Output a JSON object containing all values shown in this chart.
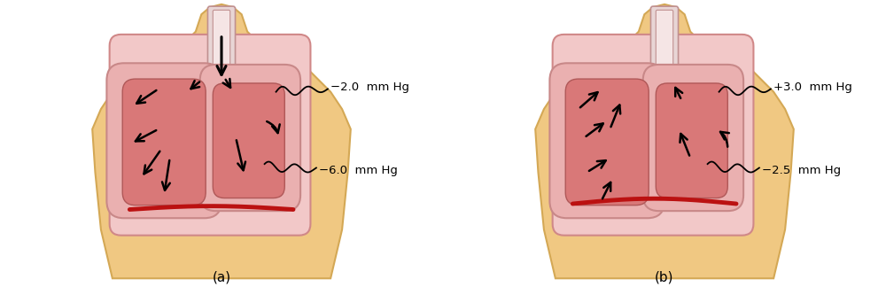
{
  "skin_color": "#F0C882",
  "skin_edge_color": "#D4A855",
  "pleura_bg_color": "#F2C8C8",
  "pleura_edge_color": "#D08888",
  "lung_outer_color": "#EAB0B0",
  "lung_outer_edge": "#C88888",
  "lung_inner_color": "#D97878",
  "lung_inner_edge": "#B05858",
  "trachea_fill": "#E8D5D5",
  "trachea_edge": "#C09090",
  "diaphragm_color": "#BB1111",
  "arrow_color": "#111111",
  "label_a": "(a)",
  "label_b": "(b)",
  "label_upper_a": "−2.0  mm Hg",
  "label_lower_a": "−6.0  mm Hg",
  "label_upper_b": "+3.0  mm Hg",
  "label_lower_b": "−2.5  mm Hg",
  "figsize": [
    10.0,
    3.24
  ],
  "dpi": 100
}
